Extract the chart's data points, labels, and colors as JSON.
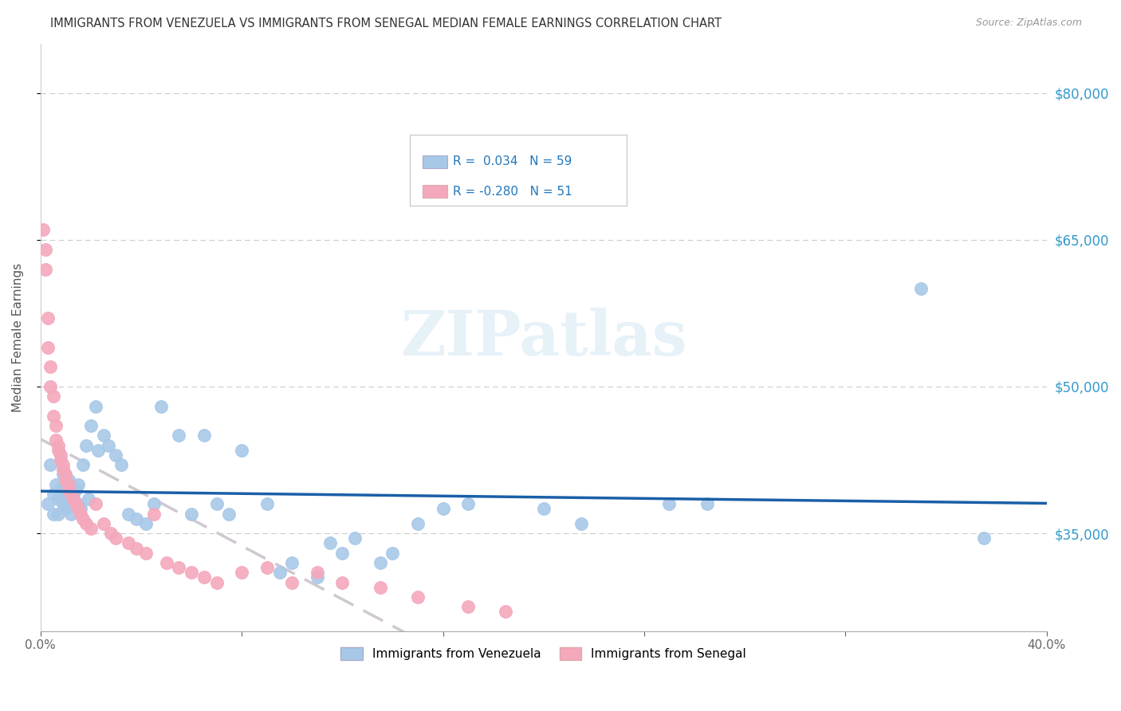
{
  "title": "IMMIGRANTS FROM VENEZUELA VS IMMIGRANTS FROM SENEGAL MEDIAN FEMALE EARNINGS CORRELATION CHART",
  "source": "Source: ZipAtlas.com",
  "ylabel": "Median Female Earnings",
  "xlim": [
    0.0,
    0.4
  ],
  "ylim": [
    25000,
    85000
  ],
  "yticks": [
    35000,
    50000,
    65000,
    80000
  ],
  "ytick_labels": [
    "$35,000",
    "$50,000",
    "$65,000",
    "$80,000"
  ],
  "color_venezuela": "#a8c8e8",
  "color_senegal": "#f4a8bc",
  "color_line_venezuela": "#1a5fa8",
  "color_line_senegal": "#d0c8d0",
  "watermark": "ZIPatlas",
  "venezuela_x": [
    0.003,
    0.004,
    0.005,
    0.005,
    0.006,
    0.007,
    0.007,
    0.008,
    0.009,
    0.009,
    0.01,
    0.01,
    0.011,
    0.012,
    0.012,
    0.013,
    0.014,
    0.015,
    0.015,
    0.016,
    0.017,
    0.018,
    0.019,
    0.02,
    0.022,
    0.023,
    0.025,
    0.027,
    0.03,
    0.032,
    0.035,
    0.038,
    0.042,
    0.045,
    0.048,
    0.055,
    0.06,
    0.065,
    0.07,
    0.075,
    0.08,
    0.09,
    0.095,
    0.1,
    0.11,
    0.115,
    0.12,
    0.125,
    0.135,
    0.14,
    0.15,
    0.16,
    0.17,
    0.2,
    0.215,
    0.25,
    0.265,
    0.35,
    0.375
  ],
  "venezuela_y": [
    38000,
    42000,
    39000,
    37000,
    40000,
    38500,
    37000,
    39500,
    38000,
    41000,
    39000,
    37500,
    40500,
    38000,
    37000,
    39000,
    39500,
    38000,
    40000,
    37500,
    42000,
    44000,
    38500,
    46000,
    48000,
    43500,
    45000,
    44000,
    43000,
    42000,
    37000,
    36500,
    36000,
    38000,
    48000,
    45000,
    37000,
    45000,
    38000,
    37000,
    43500,
    38000,
    31000,
    32000,
    30500,
    34000,
    33000,
    34500,
    32000,
    33000,
    36000,
    37500,
    38000,
    37500,
    36000,
    38000,
    38000,
    60000,
    34500
  ],
  "senegal_x": [
    0.001,
    0.002,
    0.002,
    0.003,
    0.003,
    0.004,
    0.004,
    0.005,
    0.005,
    0.006,
    0.006,
    0.007,
    0.007,
    0.008,
    0.008,
    0.009,
    0.009,
    0.01,
    0.01,
    0.011,
    0.011,
    0.012,
    0.013,
    0.014,
    0.015,
    0.016,
    0.017,
    0.018,
    0.02,
    0.022,
    0.025,
    0.028,
    0.03,
    0.035,
    0.038,
    0.042,
    0.045,
    0.05,
    0.055,
    0.06,
    0.065,
    0.07,
    0.08,
    0.09,
    0.1,
    0.11,
    0.12,
    0.135,
    0.15,
    0.17,
    0.185
  ],
  "senegal_y": [
    66000,
    64000,
    62000,
    57000,
    54000,
    52000,
    50000,
    49000,
    47000,
    46000,
    44500,
    44000,
    43500,
    43000,
    42500,
    42000,
    41500,
    41000,
    40500,
    40000,
    39500,
    39000,
    38500,
    38000,
    37500,
    37000,
    36500,
    36000,
    35500,
    38000,
    36000,
    35000,
    34500,
    34000,
    33500,
    33000,
    37000,
    32000,
    31500,
    31000,
    30500,
    30000,
    31000,
    31500,
    30000,
    31000,
    30000,
    29500,
    28500,
    27500,
    27000
  ]
}
